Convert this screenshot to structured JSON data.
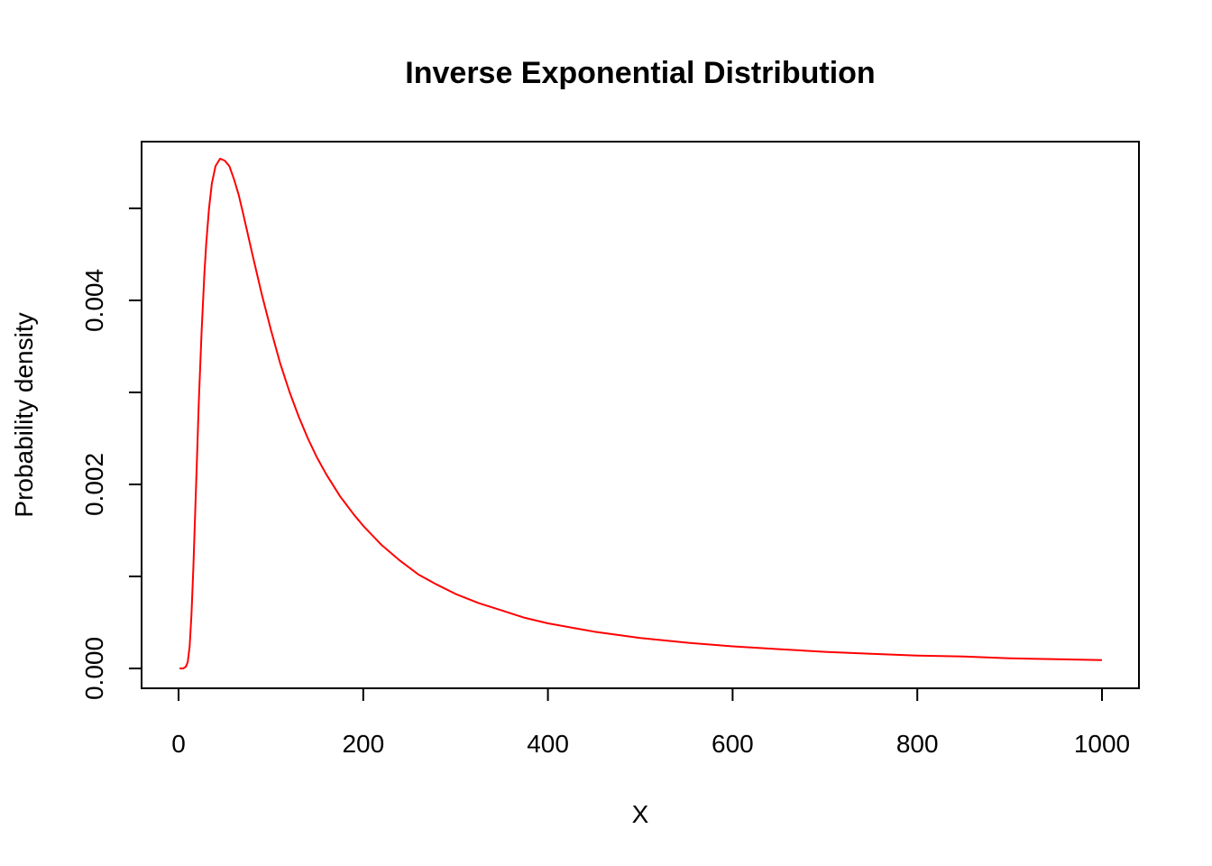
{
  "chart_data": {
    "type": "line",
    "title": "Inverse Exponential Distribution",
    "xlabel": "X",
    "ylabel": "Probability density",
    "xlim": [
      0,
      1000
    ],
    "ylim": [
      0,
      0.0055
    ],
    "x_ticks": [
      0,
      200,
      400,
      600,
      800,
      1000
    ],
    "x_tick_labels": [
      "0",
      "200",
      "400",
      "600",
      "800",
      "1000"
    ],
    "y_ticks": [
      0,
      0.001,
      0.002,
      0.003,
      0.004,
      0.005
    ],
    "y_tick_labels": [
      "0.000",
      "",
      "0.002",
      "",
      "0.004",
      ""
    ],
    "grid": false,
    "box": true,
    "series": [
      {
        "color": "#ff0000",
        "x": [
          1,
          5,
          8,
          10,
          12,
          14,
          16,
          18,
          20,
          22,
          25,
          28,
          30,
          33,
          36,
          40,
          45,
          50,
          55,
          60,
          65,
          70,
          80,
          90,
          100,
          110,
          120,
          130,
          140,
          150,
          160,
          175,
          190,
          200,
          220,
          240,
          260,
          280,
          300,
          325,
          350,
          375,
          400,
          450,
          500,
          550,
          600,
          650,
          700,
          750,
          800,
          850,
          900,
          950,
          1000
        ],
        "y": [
          0,
          0,
          2e-05,
          7e-05,
          0.00024,
          0.00058,
          0.00109,
          0.00168,
          0.0023,
          0.00291,
          0.00367,
          0.0043,
          0.00462,
          0.005,
          0.00527,
          0.00546,
          0.00554,
          0.00552,
          0.00546,
          0.00532,
          0.00515,
          0.00494,
          0.0045,
          0.00407,
          0.00368,
          0.00332,
          0.00301,
          0.00274,
          0.0025,
          0.00229,
          0.00211,
          0.00187,
          0.00167,
          0.00155,
          0.00134,
          0.00117,
          0.00102,
          0.00091,
          0.00081,
          0.00071,
          0.00063,
          0.00055,
          0.00049,
          0.0004,
          0.00033,
          0.00028,
          0.00024,
          0.00021,
          0.00018,
          0.00016,
          0.00014,
          0.00013,
          0.00011,
          0.0001,
          9e-05
        ]
      }
    ]
  }
}
